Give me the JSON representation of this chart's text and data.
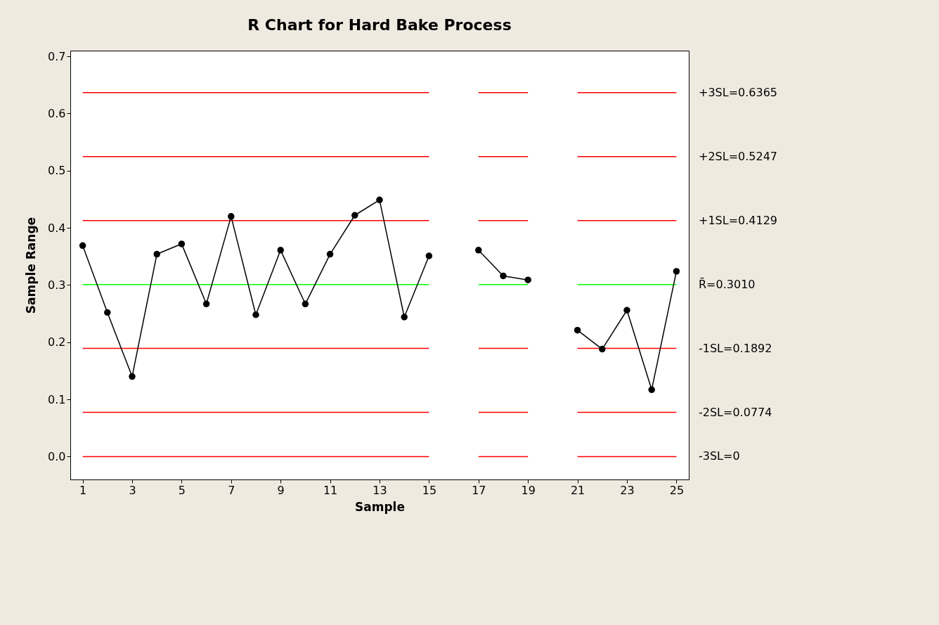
{
  "chart_data": {
    "type": "line",
    "title": "R Chart for Hard Bake Process",
    "xlabel": "Sample",
    "ylabel": "Sample Range",
    "x": [
      1,
      2,
      3,
      4,
      5,
      6,
      7,
      8,
      9,
      10,
      11,
      12,
      13,
      14,
      15,
      16,
      17,
      18,
      19,
      20,
      21,
      22,
      23,
      24,
      25
    ],
    "xlim": [
      0.5,
      25.5
    ],
    "xticks": [
      1,
      3,
      5,
      7,
      9,
      11,
      13,
      15,
      17,
      19,
      21,
      23,
      25
    ],
    "ylim": [
      -0.04,
      0.71
    ],
    "yticks": [
      {
        "value": 0,
        "label": "0.0"
      },
      0.1,
      0.2,
      0.3,
      0.4,
      0.5,
      0.6,
      0.7
    ],
    "grid": false,
    "series": [
      {
        "name": "+3SL=0.6365",
        "color": "#ff0000",
        "marker": "none",
        "values": [
          0.6365,
          0.6365,
          0.6365,
          0.6365,
          0.6365,
          0.6365,
          0.6365,
          0.6365,
          0.6365,
          0.6365,
          0.6365,
          0.6365,
          0.6365,
          0.6365,
          0.6365,
          null,
          0.6365,
          0.6365,
          0.6365,
          null,
          0.6365,
          0.6365,
          0.6365,
          0.6365,
          0.6365
        ]
      },
      {
        "name": "+2SL=0.5247",
        "color": "#ff0000",
        "marker": "none",
        "values": [
          0.5247,
          0.5247,
          0.5247,
          0.5247,
          0.5247,
          0.5247,
          0.5247,
          0.5247,
          0.5247,
          0.5247,
          0.5247,
          0.5247,
          0.5247,
          0.5247,
          0.5247,
          null,
          0.5247,
          0.5247,
          0.5247,
          null,
          0.5247,
          0.5247,
          0.5247,
          0.5247,
          0.5247
        ]
      },
      {
        "name": "+1SL=0.4129",
        "color": "#ff0000",
        "marker": "none",
        "values": [
          0.4129,
          0.4129,
          0.4129,
          0.4129,
          0.4129,
          0.4129,
          0.4129,
          0.4129,
          0.4129,
          0.4129,
          0.4129,
          0.4129,
          0.4129,
          0.4129,
          0.4129,
          null,
          0.4129,
          0.4129,
          0.4129,
          null,
          0.4129,
          0.4129,
          0.4129,
          0.4129,
          0.4129
        ]
      },
      {
        "name": "R̄=0.3010",
        "color": "#00ff00",
        "marker": "none",
        "values": [
          0.301,
          0.301,
          0.301,
          0.301,
          0.301,
          0.301,
          0.301,
          0.301,
          0.301,
          0.301,
          0.301,
          0.301,
          0.301,
          0.301,
          0.301,
          null,
          0.301,
          0.301,
          0.301,
          null,
          0.301,
          0.301,
          0.301,
          0.301,
          0.301
        ]
      },
      {
        "name": "-1SL=0.1892",
        "color": "#ff0000",
        "marker": "none",
        "values": [
          0.1892,
          0.1892,
          0.1892,
          0.1892,
          0.1892,
          0.1892,
          0.1892,
          0.1892,
          0.1892,
          0.1892,
          0.1892,
          0.1892,
          0.1892,
          0.1892,
          0.1892,
          null,
          0.1892,
          0.1892,
          0.1892,
          null,
          0.1892,
          0.1892,
          0.1892,
          0.1892,
          0.1892
        ]
      },
      {
        "name": "-2SL=0.0774",
        "color": "#ff0000",
        "marker": "none",
        "values": [
          0.0774,
          0.0774,
          0.0774,
          0.0774,
          0.0774,
          0.0774,
          0.0774,
          0.0774,
          0.0774,
          0.0774,
          0.0774,
          0.0774,
          0.0774,
          0.0774,
          0.0774,
          null,
          0.0774,
          0.0774,
          0.0774,
          null,
          0.0774,
          0.0774,
          0.0774,
          0.0774,
          0.0774
        ]
      },
      {
        "name": "-3SL=0",
        "color": "#ff0000",
        "marker": "none",
        "values": [
          0,
          0,
          0,
          0,
          0,
          0,
          0,
          0,
          0,
          0,
          0,
          0,
          0,
          0,
          0,
          null,
          0,
          0,
          0,
          null,
          0,
          0,
          0,
          0,
          0
        ]
      },
      {
        "color": "#000000",
        "marker": "circle",
        "values": [
          0.369,
          0.252,
          0.14,
          0.354,
          0.372,
          0.267,
          0.42,
          0.248,
          0.361,
          0.267,
          0.354,
          0.422,
          0.449,
          0.244,
          0.351,
          null,
          0.361,
          0.316,
          0.309,
          null,
          0.221,
          0.188,
          0.256,
          0.117,
          0.324
        ]
      }
    ]
  }
}
